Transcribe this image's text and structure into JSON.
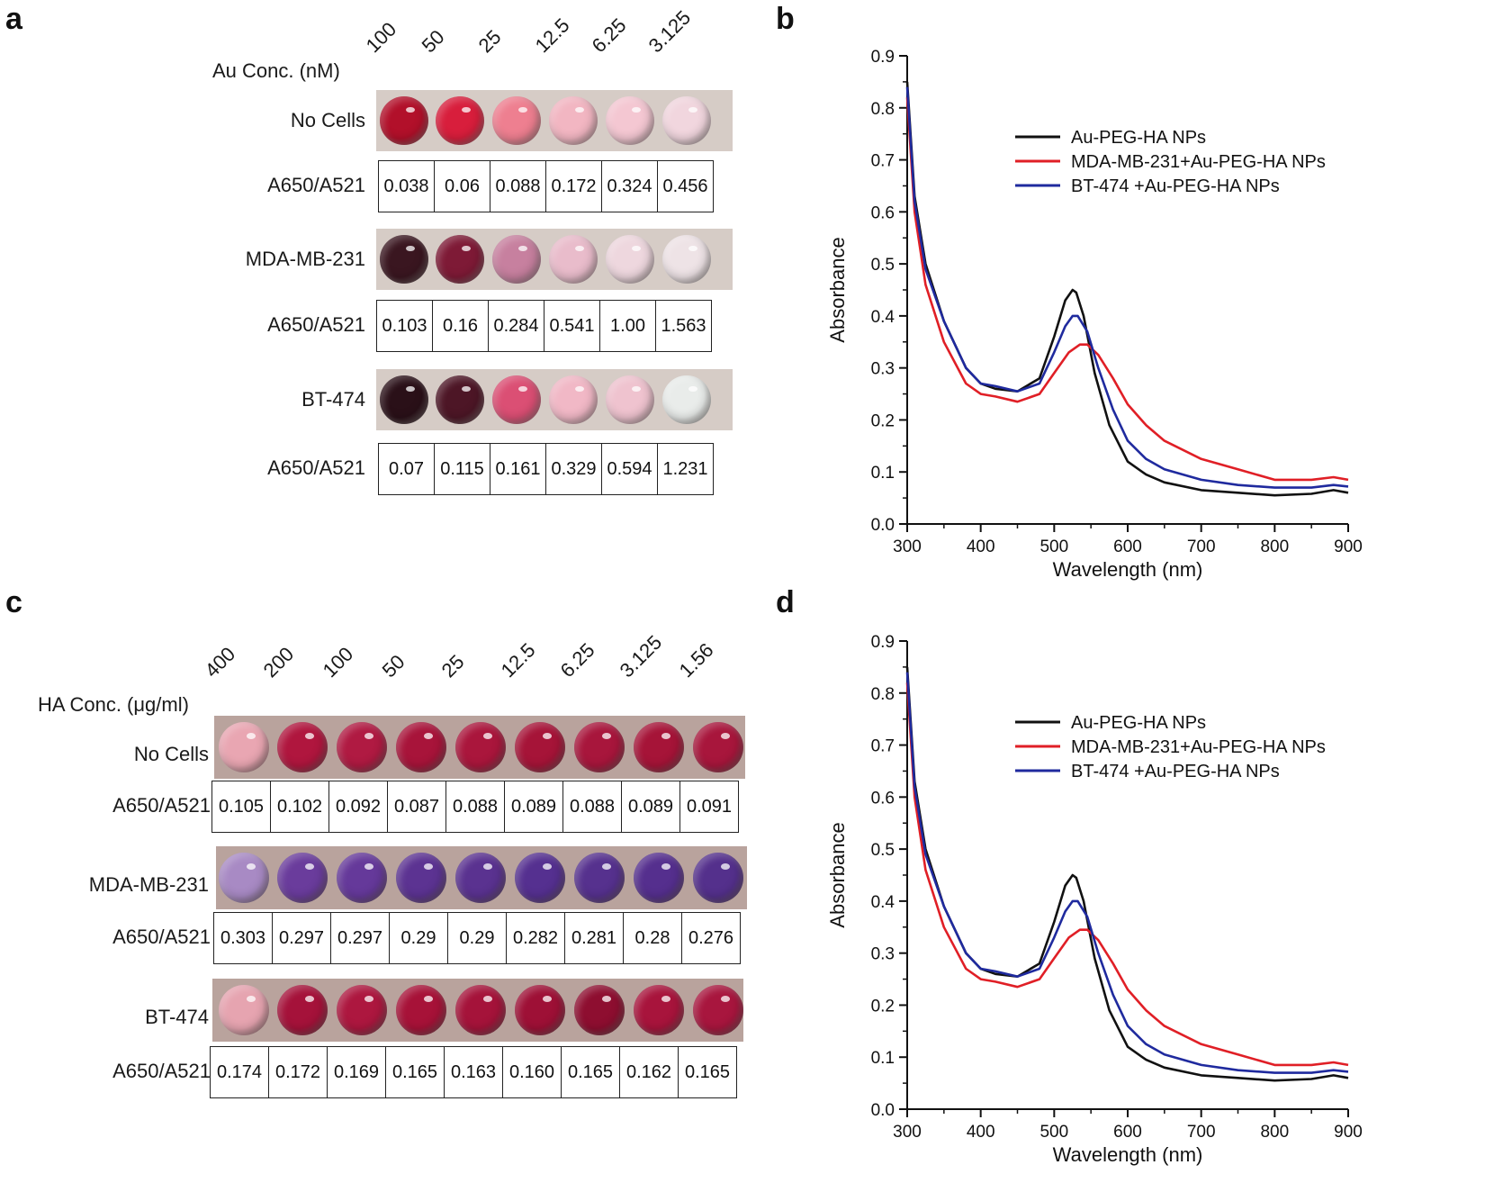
{
  "panels": {
    "a": {
      "letter": "a",
      "conc_header": "Au Conc. (nM)",
      "concentrations": [
        "100",
        "50",
        "25",
        "12.5",
        "6.25",
        "3.125"
      ],
      "rows": [
        {
          "label": "No Cells",
          "ratio_label": "A650/A521",
          "ratios": [
            "0.038",
            "0.06",
            "0.088",
            "0.172",
            "0.324",
            "0.456"
          ],
          "well_colors": [
            "#b2102a",
            "#d81e3c",
            "#ee7f90",
            "#f2b6c2",
            "#f4c7d2",
            "#f1d6de"
          ]
        },
        {
          "label": "MDA-MB-231",
          "ratio_label": "A650/A521",
          "ratios": [
            "0.103",
            "0.16",
            "0.284",
            "0.541",
            "1.00",
            "1.563"
          ],
          "well_colors": [
            "#3a1620",
            "#7e1a36",
            "#c7809f",
            "#e9bccb",
            "#eed7de",
            "#eee3e6"
          ]
        },
        {
          "label": "BT-474",
          "ratio_label": "A650/A521",
          "ratios": [
            "0.07",
            "0.115",
            "0.161",
            "0.329",
            "0.594",
            "1.231"
          ],
          "well_colors": [
            "#2a1018",
            "#4d1626",
            "#db4f74",
            "#f1b8c6",
            "#efc3cf",
            "#e9ecea"
          ]
        }
      ]
    },
    "c": {
      "letter": "c",
      "conc_header": "HA Conc. (μg/ml)",
      "concentrations": [
        "400",
        "200",
        "100",
        "50",
        "25",
        "12.5",
        "6.25",
        "3.125",
        "1.56"
      ],
      "rows": [
        {
          "label": "No Cells",
          "ratio_label": "A650/A521",
          "ratios": [
            "0.105",
            "0.102",
            "0.092",
            "0.087",
            "0.088",
            "0.089",
            "0.088",
            "0.089",
            "0.091"
          ],
          "well_colors": [
            "#e9a6b2",
            "#b0163e",
            "#b01a42",
            "#a8143a",
            "#aa163c",
            "#a61438",
            "#a8163c",
            "#a61438",
            "#a8163c"
          ]
        },
        {
          "label": "MDA-MB-231",
          "ratio_label": "A650/A521",
          "ratios": [
            "0.303",
            "0.297",
            "0.297",
            "0.29",
            "0.29",
            "0.282",
            "0.281",
            "0.28",
            "0.276"
          ],
          "well_colors": [
            "#a88ac4",
            "#6a3c9c",
            "#65399a",
            "#5c3392",
            "#5a3290",
            "#553090",
            "#56318e",
            "#552f8e",
            "#54308c"
          ]
        },
        {
          "label": "BT-474",
          "ratio_label": "A650/A521",
          "ratios": [
            "0.174",
            "0.172",
            "0.169",
            "0.165",
            "0.163",
            "0.160",
            "0.165",
            "0.162",
            "0.165"
          ],
          "well_colors": [
            "#e6a4b0",
            "#a5123a",
            "#ad173f",
            "#a71238",
            "#a5133a",
            "#9e1036",
            "#8e0e30",
            "#a8143c",
            "#a8163e"
          ]
        }
      ]
    }
  },
  "chart_data": [
    {
      "type": "line",
      "panel_letter": "b",
      "xlabel": "Wavelength (nm)",
      "ylabel": "Absorbance",
      "xlim": [
        300,
        900
      ],
      "ylim": [
        0.0,
        0.9
      ],
      "xticks": [
        "300",
        "400",
        "500",
        "600",
        "700",
        "800",
        "900"
      ],
      "yticks": [
        "0.0",
        "0.1",
        "0.2",
        "0.3",
        "0.4",
        "0.5",
        "0.6",
        "0.7",
        "0.8",
        "0.9"
      ],
      "legend_position": "top-right",
      "series": [
        {
          "name": "Au-PEG-HA NPs",
          "color": "#111111",
          "x": [
            300,
            310,
            325,
            350,
            380,
            400,
            420,
            450,
            480,
            500,
            515,
            525,
            530,
            540,
            555,
            575,
            600,
            625,
            650,
            700,
            750,
            800,
            850,
            880,
            900
          ],
          "y": [
            0.85,
            0.63,
            0.5,
            0.39,
            0.3,
            0.27,
            0.26,
            0.255,
            0.28,
            0.36,
            0.43,
            0.45,
            0.445,
            0.4,
            0.29,
            0.19,
            0.12,
            0.095,
            0.08,
            0.065,
            0.06,
            0.055,
            0.058,
            0.065,
            0.06
          ]
        },
        {
          "name": "MDA-MB-231+Au-PEG-HA NPs",
          "color": "#e01f26",
          "x": [
            300,
            310,
            325,
            350,
            380,
            400,
            420,
            450,
            480,
            500,
            520,
            535,
            545,
            560,
            580,
            600,
            625,
            650,
            700,
            750,
            800,
            850,
            880,
            900
          ],
          "y": [
            0.82,
            0.6,
            0.46,
            0.35,
            0.27,
            0.25,
            0.245,
            0.235,
            0.25,
            0.29,
            0.33,
            0.345,
            0.345,
            0.325,
            0.28,
            0.23,
            0.19,
            0.16,
            0.125,
            0.105,
            0.085,
            0.085,
            0.09,
            0.085
          ]
        },
        {
          "name": "BT-474 +Au-PEG-HA NPs",
          "color": "#1f2a9e",
          "x": [
            300,
            310,
            325,
            350,
            380,
            400,
            420,
            450,
            480,
            500,
            515,
            525,
            532,
            545,
            560,
            580,
            600,
            625,
            650,
            700,
            750,
            800,
            850,
            880,
            900
          ],
          "y": [
            0.84,
            0.62,
            0.49,
            0.39,
            0.3,
            0.27,
            0.265,
            0.255,
            0.27,
            0.33,
            0.38,
            0.4,
            0.4,
            0.37,
            0.3,
            0.22,
            0.16,
            0.125,
            0.105,
            0.085,
            0.075,
            0.07,
            0.07,
            0.075,
            0.072
          ]
        }
      ]
    },
    {
      "type": "line",
      "panel_letter": "d",
      "xlabel": "Wavelength (nm)",
      "ylabel": "Absorbance",
      "xlim": [
        300,
        900
      ],
      "ylim": [
        0.0,
        0.9
      ],
      "xticks": [
        "300",
        "400",
        "500",
        "600",
        "700",
        "800",
        "900"
      ],
      "yticks": [
        "0.0",
        "0.1",
        "0.2",
        "0.3",
        "0.4",
        "0.5",
        "0.6",
        "0.7",
        "0.8",
        "0.9"
      ],
      "legend_position": "top-right",
      "series": [
        {
          "name": "Au-PEG-HA NPs",
          "color": "#111111",
          "x": [
            300,
            310,
            325,
            350,
            380,
            400,
            420,
            450,
            480,
            500,
            515,
            525,
            530,
            540,
            555,
            575,
            600,
            625,
            650,
            700,
            750,
            800,
            850,
            880,
            900
          ],
          "y": [
            0.85,
            0.63,
            0.5,
            0.39,
            0.3,
            0.27,
            0.26,
            0.255,
            0.28,
            0.36,
            0.43,
            0.45,
            0.445,
            0.4,
            0.29,
            0.19,
            0.12,
            0.095,
            0.08,
            0.065,
            0.06,
            0.055,
            0.058,
            0.065,
            0.06
          ]
        },
        {
          "name": "MDA-MB-231+Au-PEG-HA NPs",
          "color": "#e01f26",
          "x": [
            300,
            310,
            325,
            350,
            380,
            400,
            420,
            450,
            480,
            500,
            520,
            535,
            545,
            560,
            580,
            600,
            625,
            650,
            700,
            750,
            800,
            850,
            880,
            900
          ],
          "y": [
            0.82,
            0.6,
            0.46,
            0.35,
            0.27,
            0.25,
            0.245,
            0.235,
            0.25,
            0.29,
            0.33,
            0.345,
            0.345,
            0.325,
            0.28,
            0.23,
            0.19,
            0.16,
            0.125,
            0.105,
            0.085,
            0.085,
            0.09,
            0.085
          ]
        },
        {
          "name": "BT-474 +Au-PEG-HA NPs",
          "color": "#1f2a9e",
          "x": [
            300,
            310,
            325,
            350,
            380,
            400,
            420,
            450,
            480,
            500,
            515,
            525,
            532,
            545,
            560,
            580,
            600,
            625,
            650,
            700,
            750,
            800,
            850,
            880,
            900
          ],
          "y": [
            0.84,
            0.62,
            0.49,
            0.39,
            0.3,
            0.27,
            0.265,
            0.255,
            0.27,
            0.33,
            0.38,
            0.4,
            0.4,
            0.37,
            0.3,
            0.22,
            0.16,
            0.125,
            0.105,
            0.085,
            0.075,
            0.07,
            0.07,
            0.075,
            0.072
          ]
        }
      ]
    }
  ]
}
